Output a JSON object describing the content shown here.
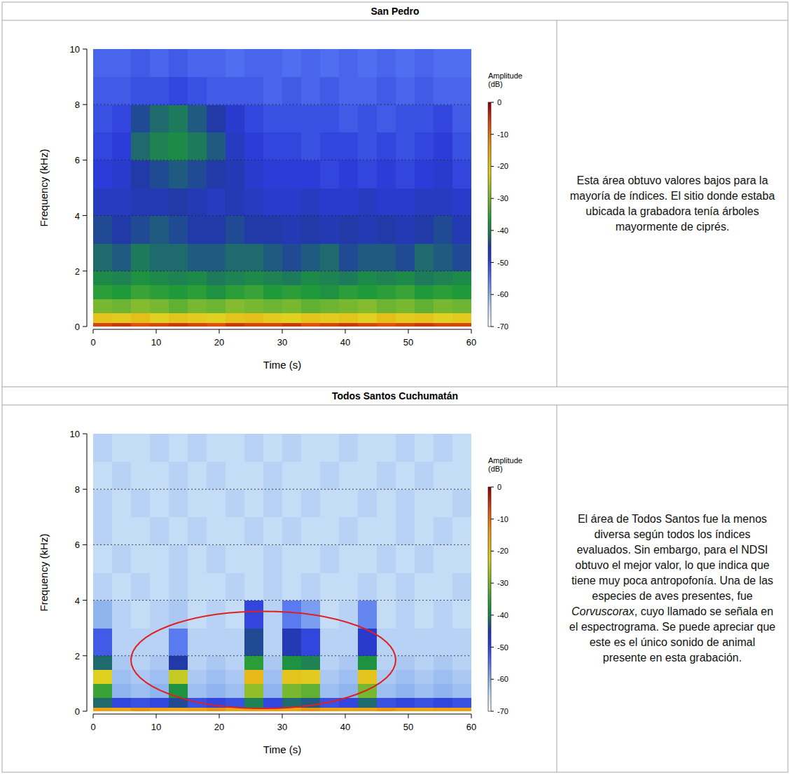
{
  "chart_data": [
    {
      "type": "heatmap",
      "title": "San Pedro",
      "xlabel": "Time (s)",
      "ylabel": "Frequency (kHz)",
      "annotation": [
        "Esta área obtuvo valores bajos para la mayoría de índices.  El sitio donde estaba ubicada la grabadora tenía árboles mayormente de ciprés."
      ],
      "xlim": [
        0,
        60
      ],
      "ylim": [
        0,
        10
      ],
      "xticks": [
        0,
        10,
        20,
        30,
        40,
        50,
        60
      ],
      "yticks": [
        0,
        2,
        4,
        6,
        8,
        10
      ],
      "grid": true,
      "x": [
        0,
        3,
        6,
        9,
        12,
        15,
        18,
        21,
        24,
        27,
        30,
        33,
        36,
        39,
        42,
        45,
        48,
        51,
        54,
        57,
        60
      ],
      "y": [
        0,
        0.15,
        0.5,
        1,
        1.5,
        2,
        3,
        4,
        5,
        6,
        7,
        8,
        9,
        10
      ],
      "cells": [
        [
          -6,
          -5,
          -7,
          -6,
          -5,
          -6,
          -7,
          -5,
          -6,
          -6,
          -5,
          -7,
          -6,
          -5,
          -6,
          -7,
          -6,
          -5,
          -6,
          -6
        ],
        [
          -20,
          -21,
          -19,
          -22,
          -20,
          -21,
          -22,
          -20,
          -19,
          -21,
          -22,
          -20,
          -21,
          -20,
          -22,
          -19,
          -21,
          -20,
          -22,
          -21
        ],
        [
          -30,
          -31,
          -29,
          -30,
          -32,
          -30,
          -31,
          -29,
          -30,
          -31,
          -30,
          -32,
          -31,
          -30,
          -29,
          -31,
          -30,
          -32,
          -30,
          -31
        ],
        [
          -36,
          -37,
          -35,
          -36,
          -37,
          -36,
          -38,
          -36,
          -35,
          -37,
          -36,
          -37,
          -38,
          -36,
          -37,
          -36,
          -35,
          -37,
          -36,
          -37
        ],
        [
          -39,
          -40,
          -38,
          -39,
          -40,
          -39,
          -41,
          -40,
          -39,
          -40,
          -41,
          -39,
          -40,
          -41,
          -39,
          -40,
          -39,
          -41,
          -40,
          -39
        ],
        [
          -42,
          -43,
          -41,
          -42,
          -42,
          -43,
          -43,
          -42,
          -42,
          -43,
          -44,
          -43,
          -42,
          -44,
          -43,
          -43,
          -44,
          -42,
          -43,
          -44
        ],
        [
          -44,
          -45,
          -44,
          -43,
          -44,
          -45,
          -45,
          -44,
          -45,
          -45,
          -46,
          -45,
          -46,
          -45,
          -46,
          -45,
          -46,
          -45,
          -44,
          -46
        ],
        [
          -47,
          -47,
          -46,
          -46,
          -45,
          -46,
          -47,
          -46,
          -47,
          -48,
          -48,
          -47,
          -48,
          -48,
          -47,
          -48,
          -48,
          -47,
          -47,
          -48
        ],
        [
          -49,
          -48,
          -45,
          -44,
          -43,
          -44,
          -45,
          -46,
          -48,
          -49,
          -49,
          -49,
          -50,
          -49,
          -50,
          -49,
          -50,
          -49,
          -48,
          -50
        ],
        [
          -50,
          -49,
          -42,
          -40,
          -39,
          -41,
          -43,
          -47,
          -49,
          -50,
          -50,
          -51,
          -50,
          -50,
          -51,
          -50,
          -51,
          -50,
          -49,
          -51
        ],
        [
          -51,
          -50,
          -44,
          -42,
          -41,
          -43,
          -45,
          -48,
          -50,
          -51,
          -51,
          -51,
          -51,
          -52,
          -51,
          -52,
          -51,
          -51,
          -50,
          -52
        ],
        [
          -52,
          -52,
          -51,
          -51,
          -50,
          -51,
          -52,
          -52,
          -52,
          -53,
          -52,
          -53,
          -52,
          -53,
          -53,
          -52,
          -53,
          -52,
          -53,
          -53
        ],
        [
          -53,
          -53,
          -52,
          -53,
          -52,
          -53,
          -53,
          -54,
          -53,
          -53,
          -54,
          -53,
          -54,
          -53,
          -54,
          -53,
          -54,
          -53,
          -54,
          -54
        ]
      ],
      "colorbar": {
        "label": "Amplitude (dB)",
        "range": [
          -70,
          0
        ],
        "ticks": [
          0,
          -10,
          -20,
          -30,
          -40,
          -50,
          -60,
          -70
        ]
      }
    },
    {
      "type": "heatmap",
      "title": "Todos Santos Cuchumatán",
      "xlabel": "Time (s)",
      "ylabel": "Frequency (kHz)",
      "annotation": [
        "El área de Todos Santos fue la menos diversa según todos los índices evaluados. Sin embargo, para el NDSI obtuvo el mejor valor, lo que indica que tiene muy poca antropofonía.  Una de las especies de aves presentes, fue ",
        "Corvuscorax",
        ", cuyo llamado se señala en el espectrograma.  Se puede apreciar que este es el único sonido de animal presente en esta grabación."
      ],
      "xlim": [
        0,
        60
      ],
      "ylim": [
        0,
        10
      ],
      "xticks": [
        0,
        10,
        20,
        30,
        40,
        50,
        60
      ],
      "yticks": [
        0,
        2,
        4,
        6,
        8,
        10
      ],
      "grid": true,
      "x": [
        0,
        3,
        6,
        9,
        12,
        15,
        18,
        21,
        24,
        27,
        30,
        33,
        36,
        39,
        42,
        45,
        48,
        51,
        54,
        57,
        60
      ],
      "y": [
        0,
        0.15,
        0.5,
        1,
        1.5,
        2,
        3,
        4,
        5,
        6,
        7,
        8,
        9,
        10
      ],
      "cells": [
        [
          -14,
          -15,
          -13,
          -14,
          -15,
          -14,
          -13,
          -15,
          -14,
          -14,
          -15,
          -13,
          -14,
          -15,
          -14,
          -13,
          -14,
          -15,
          -14,
          -14
        ],
        [
          -42,
          -50,
          -51,
          -50,
          -44,
          -51,
          -50,
          -51,
          -40,
          -50,
          -42,
          -43,
          -51,
          -50,
          -42,
          -51,
          -50,
          -51,
          -50,
          -51
        ],
        [
          -35,
          -60,
          -61,
          -60,
          -38,
          -61,
          -60,
          -61,
          -28,
          -60,
          -30,
          -32,
          -61,
          -60,
          -30,
          -61,
          -60,
          -61,
          -60,
          -61
        ],
        [
          -22,
          -61,
          -62,
          -61,
          -24,
          -62,
          -61,
          -62,
          -18,
          -61,
          -20,
          -21,
          -62,
          -61,
          -20,
          -62,
          -61,
          -62,
          -61,
          -62
        ],
        [
          -42,
          -62,
          -63,
          -62,
          -45,
          -63,
          -62,
          -63,
          -36,
          -62,
          -38,
          -40,
          -63,
          -62,
          -38,
          -63,
          -62,
          -63,
          -62,
          -63
        ],
        [
          -52,
          -63,
          -63,
          -63,
          -55,
          -63,
          -63,
          -63,
          -44,
          -63,
          -46,
          -50,
          -63,
          -63,
          -48,
          -63,
          -63,
          -63,
          -63,
          -63
        ],
        [
          -60,
          -63,
          -64,
          -63,
          -62,
          -64,
          -63,
          -64,
          -50,
          -63,
          -55,
          -58,
          -64,
          -63,
          -56,
          -64,
          -63,
          -64,
          -63,
          -64
        ],
        [
          -63,
          -64,
          -63,
          -64,
          -63,
          -64,
          -64,
          -63,
          -64,
          -63,
          -64,
          -63,
          -64,
          -64,
          -63,
          -64,
          -63,
          -64,
          -64,
          -63
        ],
        [
          -64,
          -63,
          -64,
          -64,
          -63,
          -64,
          -63,
          -64,
          -64,
          -63,
          -64,
          -64,
          -63,
          -64,
          -64,
          -63,
          -64,
          -63,
          -64,
          -64
        ],
        [
          -63,
          -64,
          -64,
          -63,
          -64,
          -63,
          -64,
          -64,
          -63,
          -64,
          -63,
          -64,
          -64,
          -63,
          -64,
          -64,
          -63,
          -64,
          -63,
          -64
        ],
        [
          -63,
          -64,
          -63,
          -64,
          -63,
          -64,
          -64,
          -63,
          -64,
          -63,
          -64,
          -63,
          -64,
          -64,
          -63,
          -64,
          -63,
          -64,
          -64,
          -63
        ],
        [
          -64,
          -63,
          -64,
          -64,
          -63,
          -64,
          -63,
          -64,
          -64,
          -63,
          -64,
          -64,
          -63,
          -64,
          -64,
          -63,
          -64,
          -63,
          -64,
          -64
        ],
        [
          -63,
          -64,
          -64,
          -63,
          -64,
          -63,
          -64,
          -64,
          -63,
          -64,
          -63,
          -64,
          -64,
          -63,
          -64,
          -64,
          -63,
          -64,
          -63,
          -64
        ]
      ],
      "colorbar": {
        "label": "Amplitude (dB)",
        "range": [
          -70,
          0
        ],
        "ticks": [
          0,
          -10,
          -20,
          -30,
          -40,
          -50,
          -60,
          -70
        ]
      },
      "highlight": {
        "x": [
          6,
          48
        ],
        "y": [
          0.1,
          3.6
        ],
        "color": "#e02020"
      }
    }
  ]
}
